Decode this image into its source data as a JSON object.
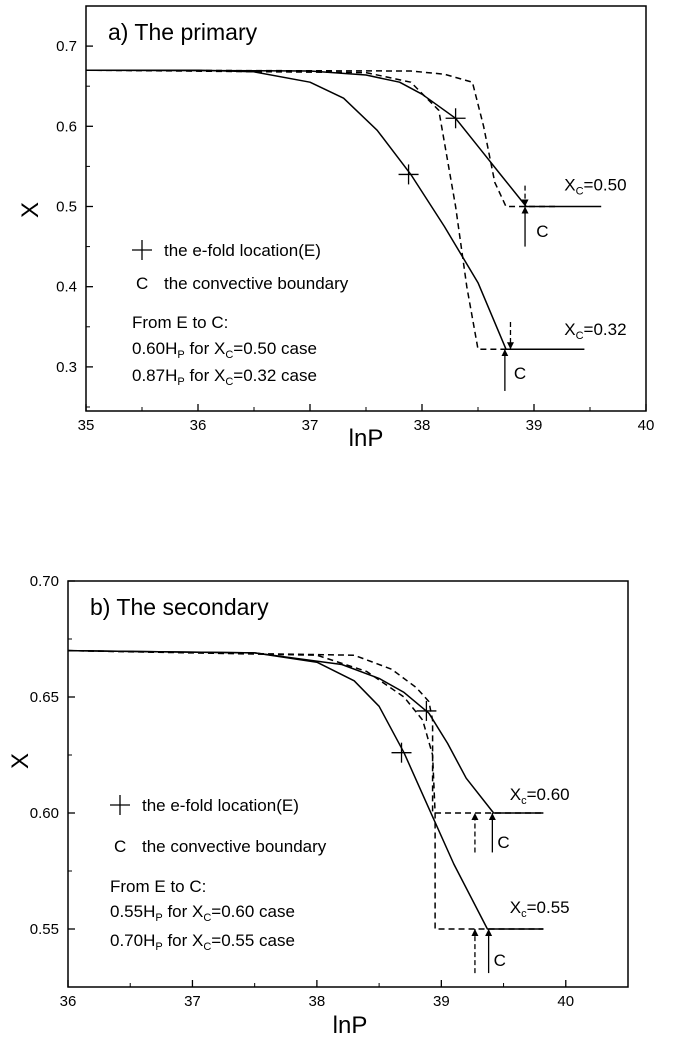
{
  "chart_data": [
    {
      "panel": "a",
      "type": "line",
      "title": "a) The primary",
      "xlabel": "lnP",
      "ylabel": "X",
      "xlim": [
        35,
        40
      ],
      "ylim": [
        0.245,
        0.75
      ],
      "xticks": [
        "35",
        "36",
        "37",
        "38",
        "39",
        "40"
      ],
      "yticks": [
        "0.3",
        "0.4",
        "0.5",
        "0.6",
        "0.7"
      ],
      "ytick_values": [
        0.3,
        0.4,
        0.5,
        0.6,
        0.7
      ],
      "grid": false,
      "series": [
        {
          "style": "solid",
          "x": [
            35,
            36,
            36.5,
            37,
            37.3,
            37.6,
            37.9,
            38.2,
            38.5,
            38.75,
            39.45
          ],
          "y": [
            0.67,
            0.67,
            0.668,
            0.655,
            0.635,
            0.595,
            0.54,
            0.475,
            0.405,
            0.322,
            0.322
          ]
        },
        {
          "style": "solid",
          "x": [
            35,
            37,
            37.5,
            37.8,
            38.0,
            38.3,
            38.5,
            38.7,
            38.93,
            39.6
          ],
          "y": [
            0.67,
            0.669,
            0.664,
            0.655,
            0.64,
            0.61,
            0.575,
            0.54,
            0.5,
            0.5
          ]
        },
        {
          "style": "dashed",
          "x": [
            35,
            37.5,
            37.9,
            38.15,
            38.3,
            38.4,
            38.5,
            39.0
          ],
          "y": [
            0.67,
            0.667,
            0.655,
            0.62,
            0.5,
            0.4,
            0.322,
            0.322
          ]
        },
        {
          "style": "dashed",
          "x": [
            35,
            37.9,
            38.2,
            38.45,
            38.55,
            38.65,
            38.75,
            39.2
          ],
          "y": [
            0.67,
            0.669,
            0.665,
            0.655,
            0.6,
            0.53,
            0.5,
            0.5
          ]
        }
      ],
      "efold_markers": [
        {
          "x": 37.88,
          "y": 0.54
        },
        {
          "x": 38.3,
          "y": 0.61
        }
      ],
      "arrows": [
        {
          "x": 38.92,
          "y_from": 0.45,
          "y_to": 0.5,
          "style": "solid"
        },
        {
          "x": 38.92,
          "y_from": 0.526,
          "y_to": 0.5,
          "style": "dashed"
        },
        {
          "x": 38.74,
          "y_from": 0.27,
          "y_to": 0.322,
          "style": "solid"
        },
        {
          "x": 38.79,
          "y_from": 0.356,
          "y_to": 0.322,
          "style": "dashed"
        }
      ],
      "c_labels": [
        {
          "text": "C",
          "x": 39.02,
          "y": 0.462
        },
        {
          "text": "C",
          "x": 38.82,
          "y": 0.285
        }
      ],
      "xc_labels": [
        {
          "prefix": "X",
          "sub": "C",
          "suffix": "=0.50",
          "x": 39.27,
          "y": 0.52
        },
        {
          "prefix": "X",
          "sub": "C",
          "suffix": "=0.32",
          "x": 39.27,
          "y": 0.34
        }
      ],
      "legend": {
        "marker_line": "the e-fold location(E)",
        "c_symbol": "C",
        "c_line": "the convective boundary",
        "from_line": "From E to C:",
        "case_lines": [
          {
            "a": "0.60H",
            "sub": "P",
            "b": " for X",
            "sub2": "C",
            "c": "=0.50 case"
          },
          {
            "a": "0.87H",
            "sub": "P",
            "b": " for X",
            "sub2": "C",
            "c": "=0.32 case"
          }
        ]
      }
    },
    {
      "panel": "b",
      "type": "line",
      "title": "b) The secondary",
      "xlabel": "lnP",
      "ylabel": "X",
      "xlim": [
        36,
        40.5
      ],
      "ylim": [
        0.525,
        0.7
      ],
      "xticks": [
        "36",
        "37",
        "38",
        "39",
        "40"
      ],
      "yticks": [
        "0.55",
        "0.60",
        "0.65",
        "0.70"
      ],
      "ytick_values": [
        0.55,
        0.6,
        0.65,
        0.7
      ],
      "grid": false,
      "series": [
        {
          "style": "solid",
          "x": [
            36,
            37.5,
            38.0,
            38.3,
            38.5,
            38.7,
            38.9,
            39.1,
            39.37,
            39.82
          ],
          "y": [
            0.67,
            0.669,
            0.665,
            0.657,
            0.646,
            0.626,
            0.602,
            0.578,
            0.55,
            0.55
          ]
        },
        {
          "style": "solid",
          "x": [
            36,
            37.5,
            38.2,
            38.5,
            38.7,
            38.9,
            39.05,
            39.2,
            39.42,
            39.82
          ],
          "y": [
            0.67,
            0.669,
            0.664,
            0.658,
            0.652,
            0.643,
            0.63,
            0.615,
            0.6,
            0.6
          ]
        },
        {
          "style": "dashed",
          "x": [
            36,
            38.0,
            38.4,
            38.7,
            38.85,
            38.93,
            38.95,
            38.95,
            39.82
          ],
          "y": [
            0.67,
            0.668,
            0.661,
            0.65,
            0.64,
            0.625,
            0.6,
            0.55,
            0.55
          ]
        },
        {
          "style": "dashed",
          "x": [
            36,
            38.3,
            38.6,
            38.8,
            38.9,
            38.93,
            38.93,
            39.82
          ],
          "y": [
            0.67,
            0.668,
            0.662,
            0.654,
            0.648,
            0.64,
            0.6,
            0.6
          ]
        }
      ],
      "efold_markers": [
        {
          "x": 38.68,
          "y": 0.626
        },
        {
          "x": 38.88,
          "y": 0.644
        }
      ],
      "arrows": [
        {
          "x": 39.27,
          "y_from": 0.583,
          "y_to": 0.6,
          "style": "dashed"
        },
        {
          "x": 39.41,
          "y_from": 0.583,
          "y_to": 0.6,
          "style": "solid"
        },
        {
          "x": 39.27,
          "y_from": 0.531,
          "y_to": 0.55,
          "style": "dashed"
        },
        {
          "x": 39.38,
          "y_from": 0.531,
          "y_to": 0.55,
          "style": "solid"
        }
      ],
      "c_labels": [
        {
          "text": "C",
          "x": 39.45,
          "y": 0.585
        },
        {
          "text": "C",
          "x": 39.42,
          "y": 0.534
        }
      ],
      "xc_labels": [
        {
          "prefix": "X",
          "sub": "c",
          "suffix": "=0.60",
          "x": 39.55,
          "y": 0.6055
        },
        {
          "prefix": "X",
          "sub": "c",
          "suffix": "=0.55",
          "x": 39.55,
          "y": 0.557
        }
      ],
      "legend": {
        "marker_line": "the e-fold location(E)",
        "c_symbol": "C",
        "c_line": "the convective boundary",
        "from_line": "From E to C:",
        "case_lines": [
          {
            "a": "0.55H",
            "sub": "P",
            "b": " for X",
            "sub2": "C",
            "c": "=0.60 case"
          },
          {
            "a": "0.70H",
            "sub": "P",
            "b": " for X",
            "sub2": "C",
            "c": "=0.55 case"
          }
        ]
      }
    }
  ]
}
